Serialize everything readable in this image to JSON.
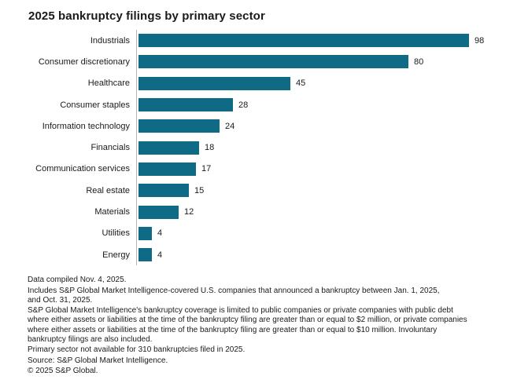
{
  "header": {
    "title": "2025 bankruptcy filings by primary sector"
  },
  "chart_data": {
    "type": "bar",
    "orientation": "horizontal",
    "title": "2025 bankruptcy filings by primary sector",
    "xlabel": "",
    "ylabel": "",
    "categories": [
      "Industrials",
      "Consumer discretionary",
      "Healthcare",
      "Consumer staples",
      "Information technology",
      "Financials",
      "Communication services",
      "Real estate",
      "Materials",
      "Utilities",
      "Energy"
    ],
    "values": [
      98,
      80,
      45,
      28,
      24,
      18,
      17,
      15,
      12,
      4,
      4
    ],
    "xlim": [
      0,
      98
    ],
    "grid": false,
    "legend": false,
    "value_labels": true,
    "bar_color": "#0e6a85",
    "axis_color": "#b3b3b3"
  },
  "footnotes": [
    "Data compiled Nov. 4, 2025.",
    "Includes S&P Global Market Intelligence-covered U.S. companies that announced a bankruptcy between Jan. 1, 2025,\nand Oct. 31, 2025.",
    "S&P Global Market Intelligence's bankruptcy coverage is limited to public companies or private companies with public debt\nwhere either assets or liabilities at the time of the bankruptcy filing are greater than or equal to $2 million, or private companies\nwhere either assets or liabilities at the time of the bankruptcy filing are greater than or equal to $10 million. Involuntary\nbankruptcy filings are also included.",
    "Primary sector not available for 310 bankruptcies filed in 2025.",
    "Source: S&P Global Market Intelligence.",
    "© 2025 S&P Global."
  ]
}
